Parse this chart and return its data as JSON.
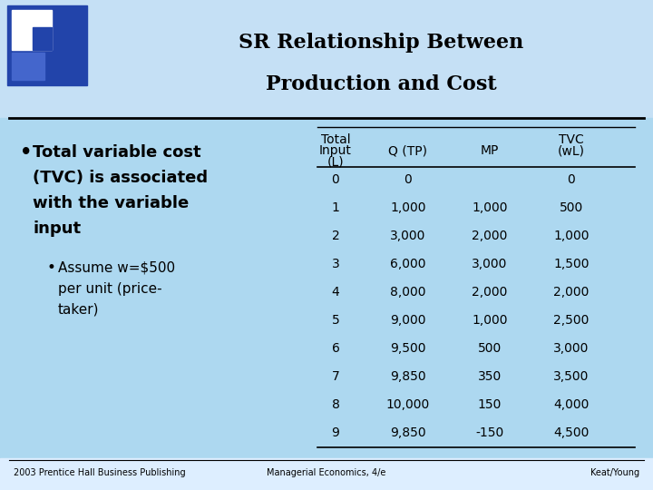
{
  "title_line1": "SR Relationship Between",
  "title_line2": "Production and Cost",
  "bg_color": "#add8f0",
  "title_bg": "#c5e0f5",
  "text_color": "#000000",
  "logo_dark_blue": "#2244aa",
  "logo_mid_blue": "#4466cc",
  "logo_light_blue": "#6688dd",
  "logo_white": "#ffffff",
  "table_data": [
    [
      "0",
      "0",
      "",
      "0"
    ],
    [
      "1",
      "1,000",
      "1,000",
      "500"
    ],
    [
      "2",
      "3,000",
      "2,000",
      "1,000"
    ],
    [
      "3",
      "6,000",
      "3,000",
      "1,500"
    ],
    [
      "4",
      "8,000",
      "2,000",
      "2,000"
    ],
    [
      "5",
      "9,000",
      "1,000",
      "2,500"
    ],
    [
      "6",
      "9,500",
      "500",
      "3,000"
    ],
    [
      "7",
      "9,850",
      "350",
      "3,500"
    ],
    [
      "8",
      "10,000",
      "150",
      "4,000"
    ],
    [
      "9",
      "9,850",
      "-150",
      "4,500"
    ]
  ],
  "footer_left": "2003 Prentice Hall Business Publishing",
  "footer_center": "Managerial Economics, 4/e",
  "footer_right": "Keat/Young",
  "title_fontsize": 16,
  "bullet_fontsize": 13,
  "subbullet_fontsize": 11,
  "table_fontsize": 10,
  "footer_fontsize": 7
}
